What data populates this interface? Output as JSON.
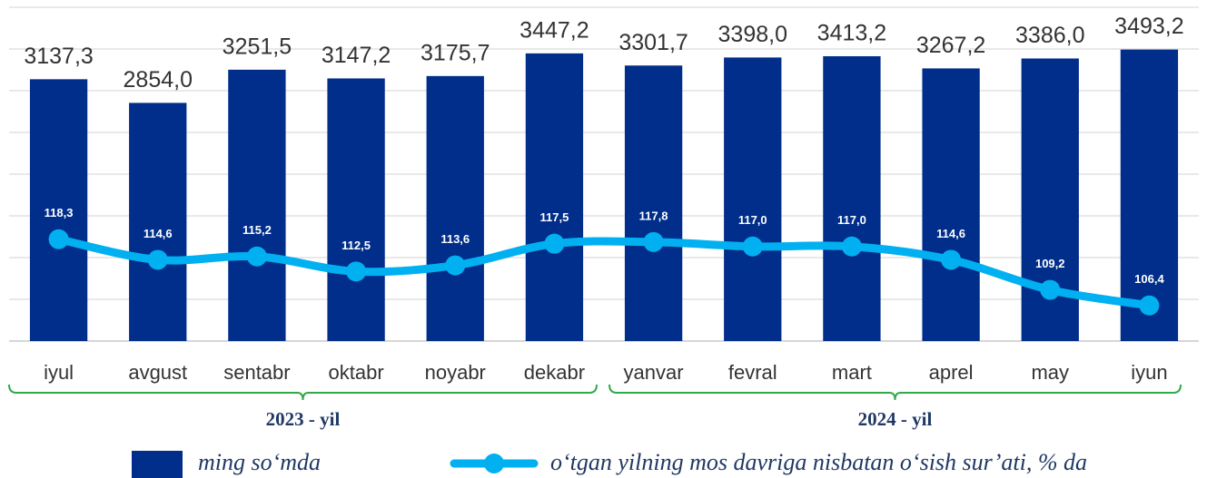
{
  "chart_data": {
    "type": "bar",
    "categories": [
      "iyul",
      "avgust",
      "sentabr",
      "oktabr",
      "noyabr",
      "dekabr",
      "yanvar",
      "fevral",
      "mart",
      "aprel",
      "may",
      "iyun"
    ],
    "series": [
      {
        "name": "ming so‘mda",
        "type": "bar",
        "color": "#002e8a",
        "values": [
          3137.3,
          2854.0,
          3251.5,
          3147.2,
          3175.7,
          3447.2,
          3301.7,
          3398.0,
          3413.2,
          3267.2,
          3386.0,
          3493.2
        ],
        "value_labels": [
          "3137,3",
          "2854,0",
          "3251,5",
          "3147,2",
          "3175,7",
          "3447,2",
          "3301,7",
          "3398,0",
          "3413,2",
          "3267,2",
          "3386,0",
          "3493,2"
        ]
      },
      {
        "name": "o‘tgan yilning mos davriga nisbatan o‘sish sur’ati, % da",
        "type": "line",
        "axis": "y2",
        "color": "#00b0f0",
        "values": [
          118.3,
          114.6,
          115.2,
          112.5,
          113.6,
          117.5,
          117.8,
          117.0,
          117.0,
          114.6,
          109.2,
          106.4
        ],
        "value_labels": [
          "118,3",
          "114,6",
          "115,2",
          "112,5",
          "113,6",
          "117,5",
          "117,8",
          "117,0",
          "117,0",
          "114,6",
          "109,2",
          "106,4"
        ]
      }
    ],
    "ylim": [
      0,
      4000
    ],
    "yticks": [
      0,
      500,
      1000,
      1500,
      2000,
      2500,
      3000,
      3500,
      4000
    ],
    "y2lim": [
      100,
      160
    ],
    "grid": true,
    "groups": [
      {
        "label": "2023 - yil",
        "span": 6
      },
      {
        "label": "2024 - yil",
        "span": 6
      }
    ],
    "group_color": "#2eaa4a"
  }
}
